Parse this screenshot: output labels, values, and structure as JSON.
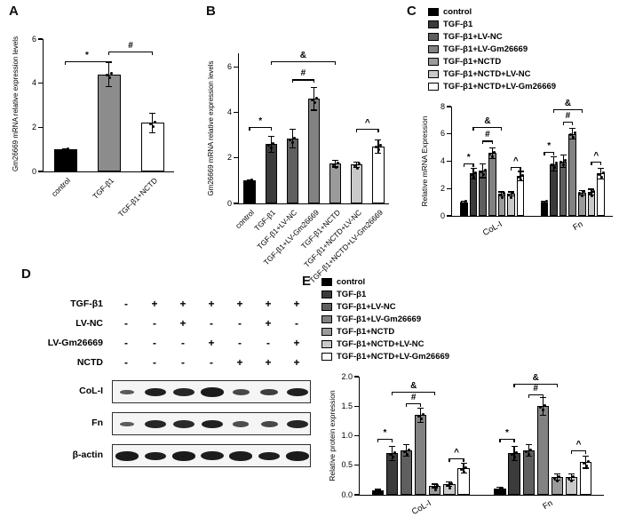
{
  "panel_labels": {
    "a": "A",
    "b": "B",
    "c": "C",
    "d": "D",
    "e": "E"
  },
  "legend": {
    "items": [
      {
        "label": "control",
        "color": "#000000"
      },
      {
        "label": "TGF-β1",
        "color": "#3b3b3b"
      },
      {
        "label": "TGF-β1+LV-NC",
        "color": "#5f5f5f"
      },
      {
        "label": "TGF-β1+LV-Gm26669",
        "color": "#828282"
      },
      {
        "label": "TGF-β1+NCTD",
        "color": "#9b9b9b"
      },
      {
        "label": "TGF-β1+NCTD+LV-NC",
        "color": "#c9c9c9"
      },
      {
        "label": "TGF-β1+NCTD+LV-Gm26669",
        "color": "#ffffff"
      }
    ]
  },
  "chart_data": [
    {
      "id": "chartA",
      "type": "bar",
      "ylabel": "Gm26669 mRNA relative expression levels",
      "ylabel_size": 8,
      "ylim": [
        0,
        6
      ],
      "yticks": [
        0,
        2,
        4,
        6
      ],
      "categories": [
        "control",
        "TGF-β1",
        "TGF-β1+NCTD"
      ],
      "values": [
        1.0,
        4.4,
        2.2
      ],
      "errors": [
        0.04,
        0.55,
        0.45
      ],
      "colors": [
        "#000000",
        "#8c8c8c",
        "#ffffff"
      ],
      "annotations": [
        {
          "from": 0,
          "to": 1,
          "y": 5.0,
          "label": "*"
        },
        {
          "from": 1,
          "to": 2,
          "y": 5.45,
          "label": "#"
        }
      ]
    },
    {
      "id": "chartB",
      "type": "bar",
      "ylabel": "Gm26669 mRNA relative expression levels",
      "ylabel_size": 8,
      "ylim": [
        0,
        6.6
      ],
      "yticks": [
        0,
        2,
        4,
        6
      ],
      "categories": [
        "control",
        "TGF-β1",
        "TGF-β1+LV-NC",
        "TGF-β1+LV-Gm26669",
        "TGF-β1+NCTD",
        "TGF-β1+NCTD+LV-NC",
        "TGF-β1+NCTD+LV-Gm26669"
      ],
      "values": [
        1.0,
        2.6,
        2.85,
        4.6,
        1.75,
        1.7,
        2.5
      ],
      "errors": [
        0.05,
        0.35,
        0.4,
        0.5,
        0.15,
        0.12,
        0.3
      ],
      "colors": [
        "#000000",
        "#3b3b3b",
        "#5f5f5f",
        "#828282",
        "#9b9b9b",
        "#c9c9c9",
        "#ffffff"
      ],
      "annotations": [
        {
          "from": 0,
          "to": 1,
          "y": 3.35,
          "label": "*"
        },
        {
          "from": 2,
          "to": 3,
          "y": 5.45,
          "label": "#"
        },
        {
          "from": 1,
          "to": 4,
          "y": 6.25,
          "label": "&"
        },
        {
          "from": 5,
          "to": 6,
          "y": 3.3,
          "label": "^"
        }
      ]
    },
    {
      "id": "chartC",
      "type": "grouped-bar",
      "ylabel": "Relative mRNA Expression",
      "ylabel_size": 8.5,
      "ylim": [
        0,
        8
      ],
      "yticks": [
        0,
        2,
        4,
        6,
        8
      ],
      "categories": [
        "CoL-I",
        "Fn"
      ],
      "series": [
        {
          "name": "control",
          "color": "#000000",
          "values": [
            1.0,
            1.0
          ],
          "errors": [
            0.08,
            0.08
          ]
        },
        {
          "name": "TGF-β1",
          "color": "#3b3b3b",
          "values": [
            3.1,
            3.8
          ],
          "errors": [
            0.4,
            0.5
          ]
        },
        {
          "name": "TGF-β1+LV-NC",
          "color": "#5f5f5f",
          "values": [
            3.3,
            4.0
          ],
          "errors": [
            0.5,
            0.45
          ]
        },
        {
          "name": "TGF-β1+LV-Gm26669",
          "color": "#828282",
          "values": [
            4.6,
            6.0
          ],
          "errors": [
            0.4,
            0.4
          ]
        },
        {
          "name": "TGF-β1+NCTD",
          "color": "#9b9b9b",
          "values": [
            1.6,
            1.7
          ],
          "errors": [
            0.15,
            0.15
          ]
        },
        {
          "name": "TGF-β1+NCTD+LV-NC",
          "color": "#c9c9c9",
          "values": [
            1.6,
            1.75
          ],
          "errors": [
            0.15,
            0.2
          ]
        },
        {
          "name": "TGF-β1+NCTD+LV-Gm26669",
          "color": "#ffffff",
          "values": [
            2.9,
            3.1
          ],
          "errors": [
            0.35,
            0.4
          ]
        }
      ],
      "annotations": [
        {
          "group": 0,
          "from": 0,
          "to": 1,
          "y": 3.85,
          "label": "*"
        },
        {
          "group": 0,
          "from": 2,
          "to": 3,
          "y": 5.5,
          "label": "#"
        },
        {
          "group": 0,
          "from": 1,
          "to": 4,
          "y": 6.5,
          "label": "&"
        },
        {
          "group": 0,
          "from": 5,
          "to": 6,
          "y": 3.6,
          "label": "^"
        },
        {
          "group": 1,
          "from": 0,
          "to": 1,
          "y": 4.7,
          "label": "*"
        },
        {
          "group": 1,
          "from": 2,
          "to": 3,
          "y": 6.9,
          "label": "#"
        },
        {
          "group": 1,
          "from": 1,
          "to": 4,
          "y": 7.8,
          "label": "&"
        },
        {
          "group": 1,
          "from": 5,
          "to": 6,
          "y": 4.0,
          "label": "^"
        }
      ]
    },
    {
      "id": "chartE",
      "type": "grouped-bar",
      "ylabel": "Relative protein expression",
      "ylabel_size": 8.5,
      "ylim": [
        0,
        2
      ],
      "yticks": [
        0,
        0.5,
        1,
        1.5,
        2
      ],
      "ytick_labels": [
        "0.0",
        "0.5",
        "1.0",
        "1.5",
        "2.0"
      ],
      "categories": [
        "CoL-I",
        "Fn"
      ],
      "series": [
        {
          "name": "control",
          "color": "#000000",
          "values": [
            0.07,
            0.1
          ],
          "errors": [
            0.02,
            0.03
          ]
        },
        {
          "name": "TGF-β1",
          "color": "#3b3b3b",
          "values": [
            0.7,
            0.7
          ],
          "errors": [
            0.12,
            0.12
          ]
        },
        {
          "name": "TGF-β1+LV-NC",
          "color": "#5f5f5f",
          "values": [
            0.75,
            0.75
          ],
          "errors": [
            0.1,
            0.1
          ]
        },
        {
          "name": "TGF-β1+LV-Gm26669",
          "color": "#828282",
          "values": [
            1.35,
            1.5
          ],
          "errors": [
            0.12,
            0.15
          ]
        },
        {
          "name": "TGF-β1+NCTD",
          "color": "#9b9b9b",
          "values": [
            0.15,
            0.3
          ],
          "errors": [
            0.03,
            0.05
          ]
        },
        {
          "name": "TGF-β1+NCTD+LV-NC",
          "color": "#c9c9c9",
          "values": [
            0.18,
            0.3
          ],
          "errors": [
            0.04,
            0.05
          ]
        },
        {
          "name": "TGF-β1+NCTD+LV-Gm26669",
          "color": "#ffffff",
          "values": [
            0.45,
            0.55
          ],
          "errors": [
            0.08,
            0.1
          ]
        }
      ],
      "annotations": [
        {
          "group": 0,
          "from": 0,
          "to": 1,
          "y": 0.95,
          "label": "*"
        },
        {
          "group": 0,
          "from": 2,
          "to": 3,
          "y": 1.55,
          "label": "#"
        },
        {
          "group": 0,
          "from": 1,
          "to": 4,
          "y": 1.75,
          "label": "&"
        },
        {
          "group": 0,
          "from": 5,
          "to": 6,
          "y": 0.62,
          "label": "^"
        },
        {
          "group": 1,
          "from": 0,
          "to": 1,
          "y": 0.95,
          "label": "*"
        },
        {
          "group": 1,
          "from": 2,
          "to": 3,
          "y": 1.7,
          "label": "#"
        },
        {
          "group": 1,
          "from": 1,
          "to": 4,
          "y": 1.88,
          "label": "&"
        },
        {
          "group": 1,
          "from": 5,
          "to": 6,
          "y": 0.75,
          "label": "^"
        }
      ]
    }
  ],
  "blot": {
    "treatments": [
      {
        "label": "TGF-β1",
        "signs": [
          "-",
          "+",
          "+",
          "+",
          "+",
          "+",
          "+"
        ]
      },
      {
        "label": "LV-NC",
        "signs": [
          "-",
          "-",
          "+",
          "-",
          "-",
          "+",
          "-"
        ]
      },
      {
        "label": "LV-Gm26669",
        "signs": [
          "-",
          "-",
          "-",
          "+",
          "-",
          "-",
          "+"
        ]
      },
      {
        "label": "NCTD",
        "signs": [
          "-",
          "-",
          "-",
          "-",
          "+",
          "+",
          "+"
        ]
      }
    ],
    "proteins": [
      {
        "label": "CoL-I",
        "bands": [
          0.32,
          0.9,
          0.85,
          0.95,
          0.5,
          0.6,
          0.9
        ]
      },
      {
        "label": "Fn",
        "bands": [
          0.3,
          0.85,
          0.8,
          0.9,
          0.45,
          0.5,
          0.85
        ]
      },
      {
        "label": "β-actin",
        "bands": [
          0.95,
          0.92,
          0.95,
          0.93,
          0.94,
          0.92,
          0.95
        ]
      }
    ]
  }
}
